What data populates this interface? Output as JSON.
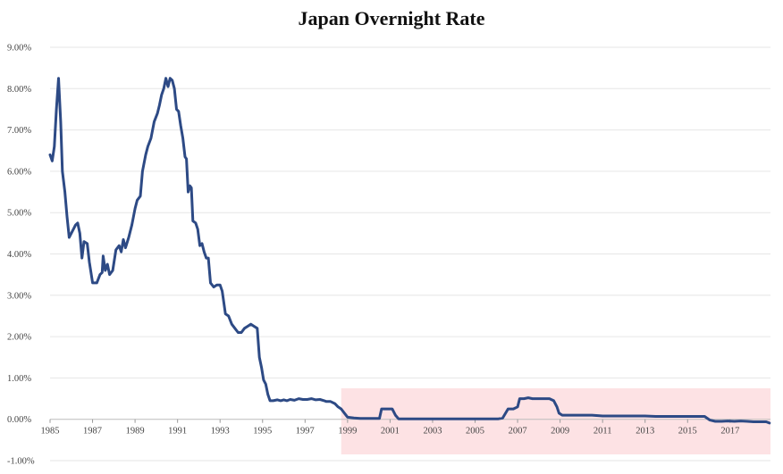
{
  "chart_data": {
    "type": "line",
    "title": "Japan Overnight Rate",
    "xlabel": "",
    "ylabel": "",
    "xlim": [
      1985,
      2018.9
    ],
    "ylim": [
      -1,
      9
    ],
    "x_ticks": [
      "1985",
      "1987",
      "1989",
      "1991",
      "1993",
      "1995",
      "1997",
      "1999",
      "2001",
      "2003",
      "2005",
      "2007",
      "2009",
      "2011",
      "2013",
      "2015",
      "2017"
    ],
    "y_ticks": [
      "9.00%",
      "8.00%",
      "7.00%",
      "6.00%",
      "5.00%",
      "4.00%",
      "3.00%",
      "2.00%",
      "1.00%",
      "0.00%",
      "-1.00%"
    ],
    "grid": "horizontal",
    "highlight": {
      "x_start": 1998.7,
      "x_end": 2018.9,
      "y_min": -0.85,
      "y_max": 0.75,
      "color": "#fde2e4"
    },
    "series": [
      {
        "color": "#2d4a85",
        "points": [
          [
            1985.0,
            6.4
          ],
          [
            1985.1,
            6.25
          ],
          [
            1985.2,
            6.6
          ],
          [
            1985.3,
            7.5
          ],
          [
            1985.4,
            8.25
          ],
          [
            1985.5,
            7.2
          ],
          [
            1985.58,
            6.0
          ],
          [
            1985.7,
            5.5
          ],
          [
            1985.8,
            4.9
          ],
          [
            1985.9,
            4.4
          ],
          [
            1986.0,
            4.5
          ],
          [
            1986.2,
            4.7
          ],
          [
            1986.3,
            4.75
          ],
          [
            1986.4,
            4.5
          ],
          [
            1986.5,
            3.9
          ],
          [
            1986.6,
            4.3
          ],
          [
            1986.75,
            4.25
          ],
          [
            1986.85,
            3.8
          ],
          [
            1987.0,
            3.3
          ],
          [
            1987.2,
            3.3
          ],
          [
            1987.35,
            3.5
          ],
          [
            1987.45,
            3.55
          ],
          [
            1987.5,
            3.95
          ],
          [
            1987.6,
            3.6
          ],
          [
            1987.7,
            3.75
          ],
          [
            1987.8,
            3.5
          ],
          [
            1987.95,
            3.6
          ],
          [
            1988.1,
            4.1
          ],
          [
            1988.25,
            4.2
          ],
          [
            1988.35,
            4.05
          ],
          [
            1988.45,
            4.35
          ],
          [
            1988.55,
            4.15
          ],
          [
            1988.7,
            4.4
          ],
          [
            1988.85,
            4.7
          ],
          [
            1989.0,
            5.1
          ],
          [
            1989.1,
            5.3
          ],
          [
            1989.25,
            5.4
          ],
          [
            1989.35,
            6.0
          ],
          [
            1989.5,
            6.4
          ],
          [
            1989.6,
            6.6
          ],
          [
            1989.75,
            6.8
          ],
          [
            1989.9,
            7.2
          ],
          [
            1990.05,
            7.4
          ],
          [
            1990.15,
            7.6
          ],
          [
            1990.25,
            7.85
          ],
          [
            1990.35,
            8.0
          ],
          [
            1990.45,
            8.25
          ],
          [
            1990.55,
            8.05
          ],
          [
            1990.65,
            8.25
          ],
          [
            1990.75,
            8.2
          ],
          [
            1990.85,
            8.0
          ],
          [
            1990.95,
            7.5
          ],
          [
            1991.05,
            7.45
          ],
          [
            1991.15,
            7.1
          ],
          [
            1991.25,
            6.8
          ],
          [
            1991.35,
            6.35
          ],
          [
            1991.42,
            6.3
          ],
          [
            1991.5,
            5.5
          ],
          [
            1991.58,
            5.65
          ],
          [
            1991.65,
            5.6
          ],
          [
            1991.72,
            4.8
          ],
          [
            1991.85,
            4.75
          ],
          [
            1991.95,
            4.6
          ],
          [
            1992.05,
            4.2
          ],
          [
            1992.15,
            4.25
          ],
          [
            1992.25,
            4.05
          ],
          [
            1992.35,
            3.9
          ],
          [
            1992.45,
            3.9
          ],
          [
            1992.55,
            3.3
          ],
          [
            1992.7,
            3.2
          ],
          [
            1992.85,
            3.25
          ],
          [
            1993.0,
            3.25
          ],
          [
            1993.1,
            3.1
          ],
          [
            1993.25,
            2.55
          ],
          [
            1993.4,
            2.5
          ],
          [
            1993.55,
            2.3
          ],
          [
            1993.7,
            2.2
          ],
          [
            1993.85,
            2.1
          ],
          [
            1994.0,
            2.1
          ],
          [
            1994.15,
            2.2
          ],
          [
            1994.3,
            2.25
          ],
          [
            1994.45,
            2.3
          ],
          [
            1994.6,
            2.25
          ],
          [
            1994.75,
            2.2
          ],
          [
            1994.85,
            1.5
          ],
          [
            1994.95,
            1.25
          ],
          [
            1995.05,
            0.95
          ],
          [
            1995.15,
            0.85
          ],
          [
            1995.25,
            0.6
          ],
          [
            1995.35,
            0.45
          ],
          [
            1995.5,
            0.45
          ],
          [
            1995.7,
            0.47
          ],
          [
            1995.85,
            0.45
          ],
          [
            1996.0,
            0.47
          ],
          [
            1996.15,
            0.45
          ],
          [
            1996.3,
            0.48
          ],
          [
            1996.5,
            0.46
          ],
          [
            1996.7,
            0.5
          ],
          [
            1996.9,
            0.48
          ],
          [
            1997.1,
            0.48
          ],
          [
            1997.3,
            0.5
          ],
          [
            1997.5,
            0.47
          ],
          [
            1997.7,
            0.48
          ],
          [
            1997.9,
            0.45
          ],
          [
            1998.0,
            0.43
          ],
          [
            1998.2,
            0.43
          ],
          [
            1998.4,
            0.38
          ],
          [
            1998.55,
            0.3
          ],
          [
            1998.7,
            0.25
          ],
          [
            1998.85,
            0.15
          ],
          [
            1999.0,
            0.05
          ],
          [
            1999.3,
            0.03
          ],
          [
            1999.6,
            0.02
          ],
          [
            1999.9,
            0.02
          ],
          [
            2000.2,
            0.02
          ],
          [
            2000.5,
            0.02
          ],
          [
            2000.6,
            0.25
          ],
          [
            2001.1,
            0.25
          ],
          [
            2001.25,
            0.1
          ],
          [
            2001.4,
            0.01
          ],
          [
            2001.8,
            0.01
          ],
          [
            2002.2,
            0.01
          ],
          [
            2002.6,
            0.01
          ],
          [
            2003.0,
            0.01
          ],
          [
            2003.4,
            0.01
          ],
          [
            2003.8,
            0.01
          ],
          [
            2004.2,
            0.01
          ],
          [
            2004.6,
            0.01
          ],
          [
            2005.0,
            0.01
          ],
          [
            2005.4,
            0.01
          ],
          [
            2005.8,
            0.01
          ],
          [
            2006.1,
            0.01
          ],
          [
            2006.3,
            0.03
          ],
          [
            2006.55,
            0.25
          ],
          [
            2006.8,
            0.25
          ],
          [
            2007.0,
            0.3
          ],
          [
            2007.1,
            0.5
          ],
          [
            2007.3,
            0.5
          ],
          [
            2007.5,
            0.52
          ],
          [
            2007.7,
            0.5
          ],
          [
            2007.9,
            0.5
          ],
          [
            2008.2,
            0.5
          ],
          [
            2008.5,
            0.5
          ],
          [
            2008.7,
            0.45
          ],
          [
            2008.85,
            0.3
          ],
          [
            2008.95,
            0.15
          ],
          [
            2009.1,
            0.1
          ],
          [
            2009.5,
            0.1
          ],
          [
            2010.0,
            0.1
          ],
          [
            2010.5,
            0.1
          ],
          [
            2011.0,
            0.08
          ],
          [
            2011.5,
            0.08
          ],
          [
            2012.0,
            0.08
          ],
          [
            2012.5,
            0.08
          ],
          [
            2013.0,
            0.08
          ],
          [
            2013.5,
            0.07
          ],
          [
            2014.0,
            0.07
          ],
          [
            2014.5,
            0.07
          ],
          [
            2015.0,
            0.07
          ],
          [
            2015.5,
            0.07
          ],
          [
            2015.8,
            0.07
          ],
          [
            2016.05,
            -0.02
          ],
          [
            2016.3,
            -0.05
          ],
          [
            2016.6,
            -0.05
          ],
          [
            2016.9,
            -0.04
          ],
          [
            2017.2,
            -0.05
          ],
          [
            2017.5,
            -0.04
          ],
          [
            2017.8,
            -0.05
          ],
          [
            2018.1,
            -0.06
          ],
          [
            2018.4,
            -0.06
          ],
          [
            2018.7,
            -0.06
          ],
          [
            2018.85,
            -0.09
          ]
        ]
      }
    ]
  }
}
